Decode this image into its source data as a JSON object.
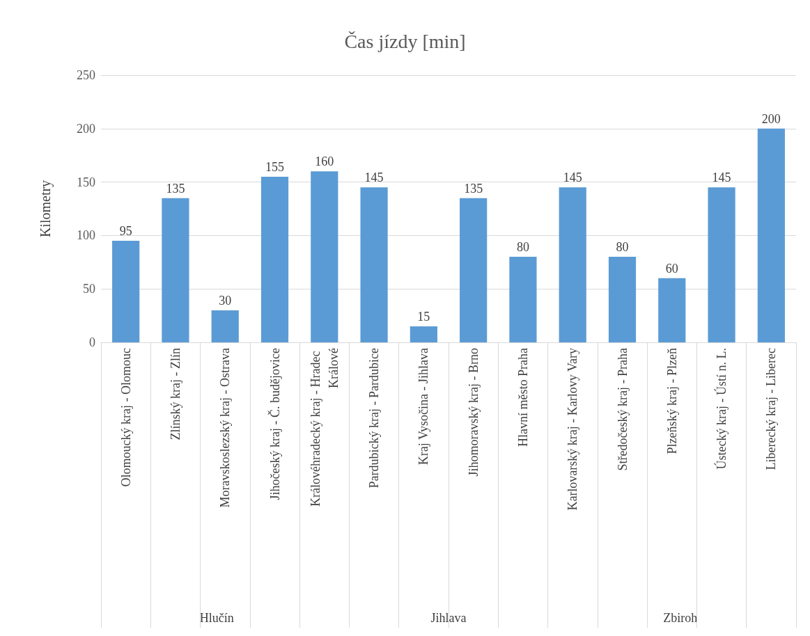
{
  "chart_data": {
    "type": "bar",
    "title": "Čas jízdy [min]",
    "ylabel": "Kilometry",
    "categories": [
      "Olomoucký kraj - Olomouc",
      "Zlínský kraj - Zlín",
      "Moravskoslezský kraj - Ostrava",
      "Jihočeský kraj - Č. budějovice",
      "Královéhradecký kraj - Hradec Králové",
      "Pardubický kraj - Pardubice",
      "Kraj Vysočina - Jihlava",
      "Jihomoravský kraj - Brno",
      "Hlavní město Praha",
      "Karlovarský kraj - Karlovy Vary",
      "Středočeský kraj - Praha",
      "Plzeňský kraj - Plzeň",
      "Ústecký kraj - Ústí n. L.",
      "Liberecký kraj - Liberec"
    ],
    "values": [
      95,
      135,
      30,
      155,
      160,
      145,
      15,
      135,
      80,
      145,
      80,
      60,
      145,
      200
    ],
    "color": "#5b9bd5",
    "ylim": [
      0,
      250
    ],
    "yticks": [
      0,
      50,
      100,
      150,
      200,
      250
    ],
    "grid": "y",
    "data_labels": true,
    "annotations": [
      "Hlučín",
      "Jihlava",
      "Zbiroh"
    ]
  }
}
